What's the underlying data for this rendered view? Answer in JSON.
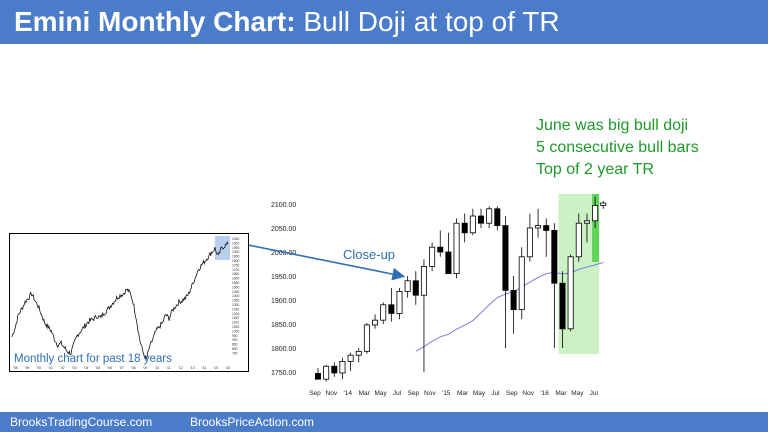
{
  "title": {
    "bold": "Emini Monthly Chart:",
    "rest": " Bull Doji at top of TR"
  },
  "annotations": [
    "June was big bull doji",
    "5 consecutive bull bars",
    "Top of 2 year TR"
  ],
  "closeup_label": "Close-up",
  "inset_label": "Monthly chart for past 18 years",
  "footer": {
    "left": "BrooksTradingCourse.com",
    "right": "BrooksPriceAction.com"
  },
  "colors": {
    "title_bar": "#4a7cc9",
    "annotation": "#1e9a2a",
    "arrow": "#2e6fb5",
    "highlight": "#b9ecb2",
    "june_highlight": "#5fd35a",
    "ma_line": "#6f6fe0"
  },
  "chart_data": [
    {
      "type": "candlestick",
      "title": "",
      "y_ticks": [
        "2100.00",
        "2050.00",
        "2000.00",
        "1950.00",
        "1900.00",
        "1850.00",
        "1800.00",
        "1750.00"
      ],
      "ylim": [
        1730,
        2115
      ],
      "x_labels": [
        "Sep",
        "Nov",
        "'14",
        "Mar",
        "May",
        "Jul",
        "Sep",
        "Nov",
        "'15",
        "Mar",
        "May",
        "Jul",
        "Sep",
        "Nov",
        "'16",
        "Mar",
        "May",
        "Jul"
      ],
      "moving_average": true,
      "candles": [
        {
          "o": 1747,
          "h": 1758,
          "l": 1735,
          "c": 1735
        },
        {
          "o": 1735,
          "h": 1765,
          "l": 1730,
          "c": 1762
        },
        {
          "o": 1762,
          "h": 1770,
          "l": 1740,
          "c": 1748
        },
        {
          "o": 1748,
          "h": 1780,
          "l": 1735,
          "c": 1772
        },
        {
          "o": 1772,
          "h": 1790,
          "l": 1752,
          "c": 1785
        },
        {
          "o": 1785,
          "h": 1800,
          "l": 1770,
          "c": 1793
        },
        {
          "o": 1793,
          "h": 1852,
          "l": 1788,
          "c": 1848
        },
        {
          "o": 1848,
          "h": 1870,
          "l": 1840,
          "c": 1858
        },
        {
          "o": 1858,
          "h": 1895,
          "l": 1850,
          "c": 1890
        },
        {
          "o": 1890,
          "h": 1925,
          "l": 1855,
          "c": 1872
        },
        {
          "o": 1872,
          "h": 1925,
          "l": 1860,
          "c": 1918
        },
        {
          "o": 1918,
          "h": 1950,
          "l": 1905,
          "c": 1940
        },
        {
          "o": 1940,
          "h": 1960,
          "l": 1890,
          "c": 1910
        },
        {
          "o": 1910,
          "h": 1985,
          "l": 1750,
          "c": 1970
        },
        {
          "o": 1970,
          "h": 2020,
          "l": 1960,
          "c": 2010
        },
        {
          "o": 2010,
          "h": 2045,
          "l": 1990,
          "c": 2000
        },
        {
          "o": 2000,
          "h": 2040,
          "l": 1955,
          "c": 1955
        },
        {
          "o": 1955,
          "h": 2070,
          "l": 1945,
          "c": 2060
        },
        {
          "o": 2060,
          "h": 2080,
          "l": 2020,
          "c": 2040
        },
        {
          "o": 2040,
          "h": 2090,
          "l": 2035,
          "c": 2075
        },
        {
          "o": 2075,
          "h": 2090,
          "l": 2050,
          "c": 2060
        },
        {
          "o": 2060,
          "h": 2095,
          "l": 2050,
          "c": 2090
        },
        {
          "o": 2090,
          "h": 2095,
          "l": 2045,
          "c": 2055
        },
        {
          "o": 2055,
          "h": 2075,
          "l": 1800,
          "c": 1920
        },
        {
          "o": 1920,
          "h": 1950,
          "l": 1830,
          "c": 1880
        },
        {
          "o": 1880,
          "h": 2010,
          "l": 1860,
          "c": 1990
        },
        {
          "o": 1990,
          "h": 2080,
          "l": 1980,
          "c": 2050
        },
        {
          "o": 2050,
          "h": 2090,
          "l": 2030,
          "c": 2055
        },
        {
          "o": 2055,
          "h": 2070,
          "l": 1990,
          "c": 2045
        },
        {
          "o": 2045,
          "h": 2060,
          "l": 1800,
          "c": 1935
        },
        {
          "o": 1935,
          "h": 1960,
          "l": 1800,
          "c": 1840
        },
        {
          "o": 1840,
          "h": 1995,
          "l": 1835,
          "c": 1990
        },
        {
          "o": 1990,
          "h": 2080,
          "l": 1980,
          "c": 2060
        },
        {
          "o": 2060,
          "h": 2080,
          "l": 2020,
          "c": 2065
        },
        {
          "o": 2065,
          "h": 2115,
          "l": 2050,
          "c": 2097
        },
        {
          "o": 2097,
          "h": 2106,
          "l": 2090,
          "c": 2102
        }
      ]
    },
    {
      "type": "line",
      "title": "",
      "y_ticks": [
        "2050",
        "2000",
        "1950",
        "1900",
        "1850",
        "1800",
        "1750",
        "1700",
        "1650",
        "1600",
        "1550",
        "1500",
        "1450",
        "1400",
        "1350",
        "1300",
        "1250",
        "1200",
        "1150",
        "1100",
        "1050",
        "1000",
        "950",
        "900",
        "850",
        "800",
        "750"
      ],
      "x_labels": [
        "'98",
        "'99",
        "'00",
        "'01",
        "'02",
        "'03",
        "'04",
        "'05",
        "'06",
        "'07",
        "'08",
        "'09",
        "'10",
        "'11",
        "'12",
        "'13",
        "'14",
        "'15",
        "'16"
      ],
      "values": [
        980,
        1100,
        1250,
        1320,
        1400,
        1450,
        1500,
        1420,
        1350,
        1250,
        1150,
        1100,
        1050,
        950,
        880,
        900,
        850,
        800,
        780,
        900,
        1000,
        1050,
        1100,
        1150,
        1180,
        1200,
        1230,
        1210,
        1260,
        1300,
        1350,
        1400,
        1450,
        1480,
        1500,
        1550,
        1520,
        1400,
        1200,
        950,
        800,
        700,
        850,
        950,
        1050,
        1100,
        1150,
        1250,
        1200,
        1300,
        1350,
        1400,
        1420,
        1450,
        1500,
        1600,
        1700,
        1800,
        1850,
        1900,
        1950,
        2000,
        2050,
        1950,
        2050,
        2080,
        2100
      ]
    }
  ]
}
